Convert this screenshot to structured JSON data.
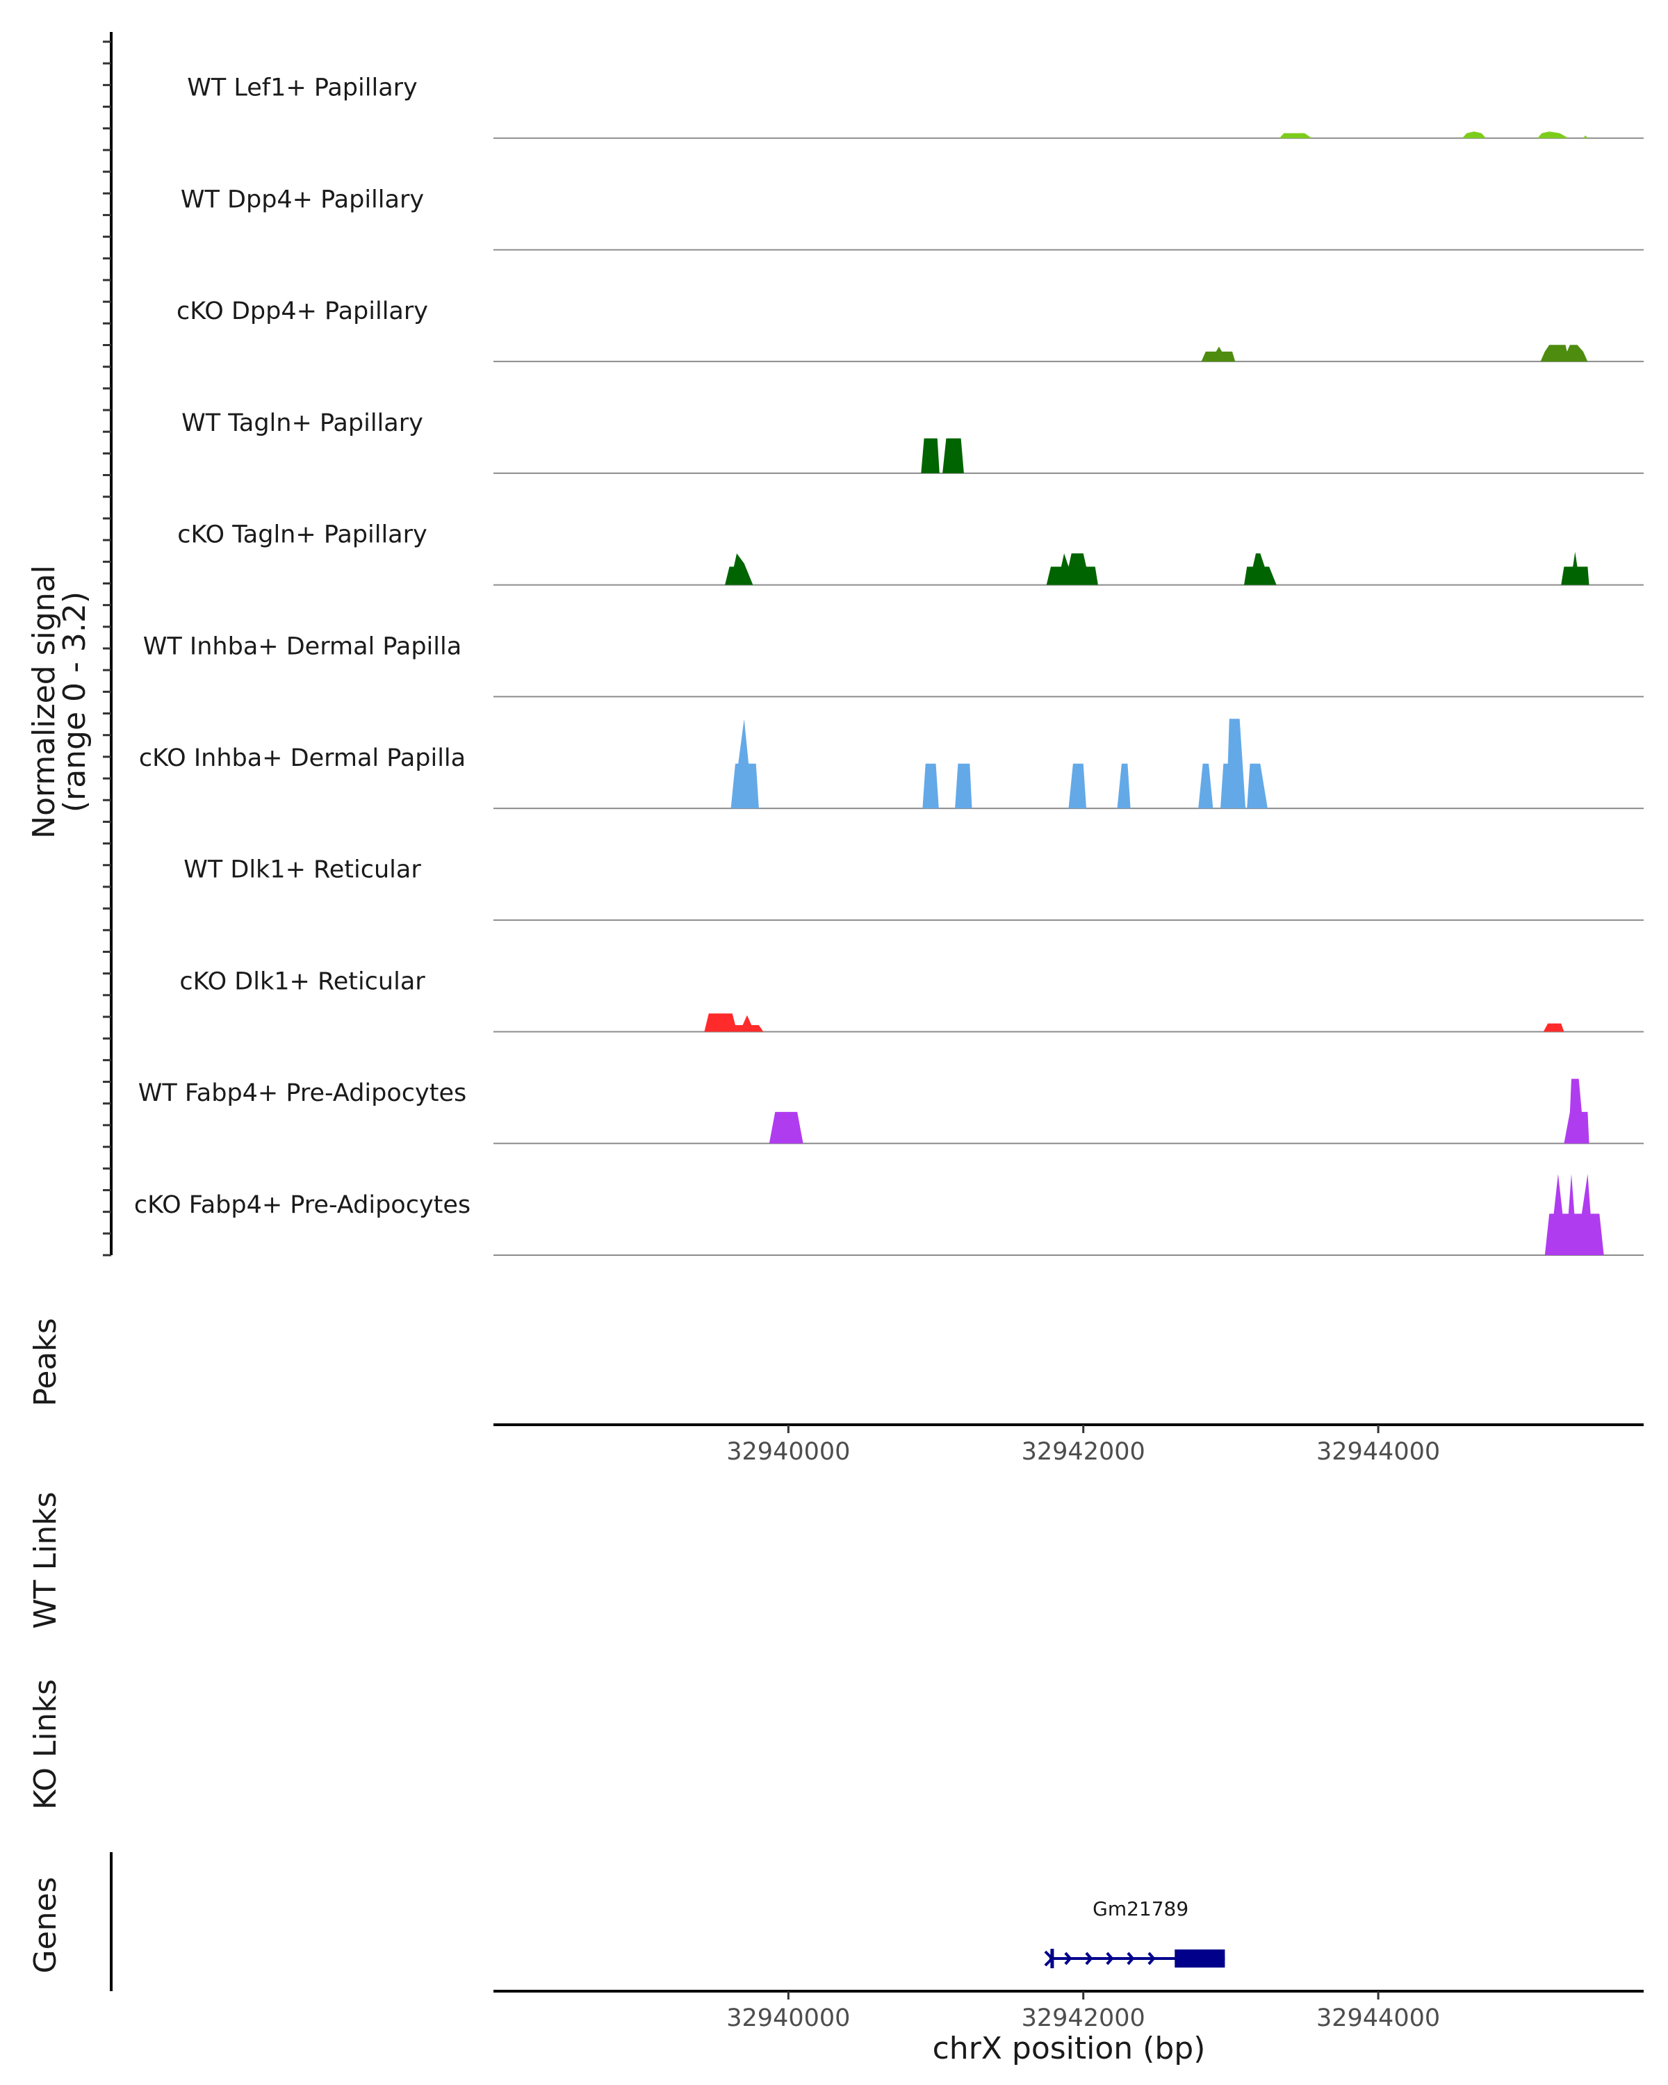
{
  "chart_data": {
    "type": "area",
    "y_axis_title": "Normalized signal",
    "y_axis_range_label": "(range 0 - 3.2)",
    "y_range": [
      0,
      3.2
    ],
    "x_range": [
      32938000,
      32945800
    ],
    "x_ticks": [
      32940000,
      32942000,
      32944000
    ],
    "x_tick_labels": [
      "32940000",
      "32942000",
      "32944000"
    ],
    "xlabel": "chrX position (bp)",
    "tracks": [
      {
        "name": "WT Lef1+ Papillary",
        "color": "#7ccd1a",
        "points": [
          [
            32941900,
            0
          ],
          [
            32943330,
            0
          ],
          [
            32943360,
            0.15
          ],
          [
            32943500,
            0.15
          ],
          [
            32943550,
            0
          ],
          [
            32944570,
            0
          ],
          [
            32944600,
            0.15
          ],
          [
            32944650,
            0.2
          ],
          [
            32944700,
            0.15
          ],
          [
            32944730,
            0
          ],
          [
            32945080,
            0
          ],
          [
            32945110,
            0.15
          ],
          [
            32945160,
            0.2
          ],
          [
            32945230,
            0.15
          ],
          [
            32945290,
            0
          ],
          [
            32945390,
            0
          ],
          [
            32945405,
            0.08
          ],
          [
            32945420,
            0
          ]
        ]
      },
      {
        "name": "WT Dpp4+ Papillary",
        "color": "#4d8c0e",
        "points": []
      },
      {
        "name": "cKO Dpp4+ Papillary",
        "color": "#4d8c0e",
        "points": [
          [
            32942800,
            0
          ],
          [
            32942830,
            0.3
          ],
          [
            32942900,
            0.3
          ],
          [
            32942920,
            0.45
          ],
          [
            32942940,
            0.3
          ],
          [
            32943010,
            0.3
          ],
          [
            32943030,
            0
          ],
          [
            32945100,
            0
          ],
          [
            32945130,
            0.3
          ],
          [
            32945160,
            0.5
          ],
          [
            32945270,
            0.5
          ],
          [
            32945280,
            0.3
          ],
          [
            32945300,
            0.5
          ],
          [
            32945350,
            0.5
          ],
          [
            32945390,
            0.3
          ],
          [
            32945420,
            0
          ]
        ]
      },
      {
        "name": "WT Tagln+ Papillary",
        "color": "#006400",
        "points": [
          [
            32940900,
            0
          ],
          [
            32940920,
            1.05
          ],
          [
            32941010,
            1.05
          ],
          [
            32941025,
            0
          ],
          [
            32941045,
            0
          ],
          [
            32941070,
            1.05
          ],
          [
            32941170,
            1.05
          ],
          [
            32941190,
            0
          ]
        ]
      },
      {
        "name": "cKO Tagln+ Papillary",
        "color": "#006400",
        "points": [
          [
            32939570,
            0
          ],
          [
            32939600,
            0.55
          ],
          [
            32939630,
            0.55
          ],
          [
            32939650,
            0.95
          ],
          [
            32939700,
            0.65
          ],
          [
            32939760,
            0
          ],
          [
            32941750,
            0
          ],
          [
            32941780,
            0.55
          ],
          [
            32941850,
            0.55
          ],
          [
            32941870,
            0.95
          ],
          [
            32941900,
            0.55
          ],
          [
            32941920,
            0.95
          ],
          [
            32942000,
            0.95
          ],
          [
            32942020,
            0.55
          ],
          [
            32942080,
            0.55
          ],
          [
            32942100,
            0
          ],
          [
            32943090,
            0
          ],
          [
            32943110,
            0.55
          ],
          [
            32943150,
            0.55
          ],
          [
            32943170,
            0.95
          ],
          [
            32943200,
            0.95
          ],
          [
            32943230,
            0.55
          ],
          [
            32943260,
            0.55
          ],
          [
            32943310,
            0
          ],
          [
            32945240,
            0
          ],
          [
            32945260,
            0.55
          ],
          [
            32945320,
            0.55
          ],
          [
            32945335,
            1.0
          ],
          [
            32945350,
            0.55
          ],
          [
            32945420,
            0.55
          ],
          [
            32945430,
            0
          ]
        ]
      },
      {
        "name": "WT Inhba+ Dermal Papilla",
        "color": "#63a9e8",
        "points": []
      },
      {
        "name": "cKO Inhba+ Dermal Papilla",
        "color": "#63a9e8",
        "points": [
          [
            32939610,
            0
          ],
          [
            32939640,
            1.35
          ],
          [
            32939660,
            1.35
          ],
          [
            32939700,
            2.7
          ],
          [
            32939730,
            1.35
          ],
          [
            32939780,
            1.35
          ],
          [
            32939800,
            0
          ],
          [
            32940910,
            0
          ],
          [
            32940930,
            1.35
          ],
          [
            32941000,
            1.35
          ],
          [
            32941020,
            0
          ],
          [
            32941130,
            0
          ],
          [
            32941150,
            1.35
          ],
          [
            32941230,
            1.35
          ],
          [
            32941245,
            0
          ],
          [
            32941900,
            0
          ],
          [
            32941930,
            1.35
          ],
          [
            32942000,
            1.35
          ],
          [
            32942020,
            0
          ],
          [
            32942230,
            0
          ],
          [
            32942260,
            1.35
          ],
          [
            32942300,
            1.35
          ],
          [
            32942320,
            0
          ],
          [
            32942780,
            0
          ],
          [
            32942810,
            1.35
          ],
          [
            32942850,
            1.35
          ],
          [
            32942880,
            0
          ],
          [
            32942930,
            0
          ],
          [
            32942950,
            1.35
          ],
          [
            32942980,
            1.35
          ],
          [
            32942990,
            2.7
          ],
          [
            32943060,
            2.7
          ],
          [
            32943080,
            1.35
          ],
          [
            32943100,
            0
          ],
          [
            32943110,
            0
          ],
          [
            32943130,
            1.35
          ],
          [
            32943200,
            1.35
          ],
          [
            32943250,
            0
          ]
        ]
      },
      {
        "name": "WT Dlk1+ Reticular",
        "color": "#ff2a2a",
        "points": []
      },
      {
        "name": "cKO Dlk1+ Reticular",
        "color": "#ff2a2a",
        "points": [
          [
            32939430,
            0
          ],
          [
            32939460,
            0.55
          ],
          [
            32939620,
            0.55
          ],
          [
            32939640,
            0.2
          ],
          [
            32939690,
            0.2
          ],
          [
            32939720,
            0.5
          ],
          [
            32939750,
            0.2
          ],
          [
            32939800,
            0.2
          ],
          [
            32939830,
            0
          ],
          [
            32945120,
            0
          ],
          [
            32945150,
            0.25
          ],
          [
            32945240,
            0.25
          ],
          [
            32945260,
            0
          ]
        ]
      },
      {
        "name": "WT Fabp4+ Pre-Adipocytes",
        "color": "#b03cf0",
        "points": [
          [
            32939870,
            0
          ],
          [
            32939910,
            0.95
          ],
          [
            32940060,
            0.95
          ],
          [
            32940100,
            0
          ],
          [
            32945260,
            0
          ],
          [
            32945300,
            0.95
          ],
          [
            32945310,
            1.95
          ],
          [
            32945360,
            1.95
          ],
          [
            32945380,
            0.95
          ],
          [
            32945420,
            0.95
          ],
          [
            32945430,
            0
          ]
        ]
      },
      {
        "name": "cKO Fabp4+ Pre-Adipocytes",
        "color": "#b03cf0",
        "points": [
          [
            32945130,
            0
          ],
          [
            32945160,
            1.25
          ],
          [
            32945190,
            1.25
          ],
          [
            32945220,
            2.45
          ],
          [
            32945250,
            1.25
          ],
          [
            32945290,
            1.25
          ],
          [
            32945310,
            2.45
          ],
          [
            32945330,
            1.25
          ],
          [
            32945380,
            1.25
          ],
          [
            32945420,
            2.45
          ],
          [
            32945440,
            1.25
          ],
          [
            32945500,
            1.25
          ],
          [
            32945530,
            0
          ]
        ]
      }
    ],
    "side_panels": [
      {
        "name": "Peaks",
        "items": []
      },
      {
        "name": "WT Links",
        "items": []
      },
      {
        "name": "KO Links",
        "items": []
      }
    ],
    "genes_panel": {
      "name": "Genes",
      "genes": [
        {
          "name": "Gm21789",
          "start": 32941770,
          "end": 32942960,
          "cds_start": 32942620,
          "cds_end": 32942960,
          "strand": "+"
        }
      ]
    }
  }
}
